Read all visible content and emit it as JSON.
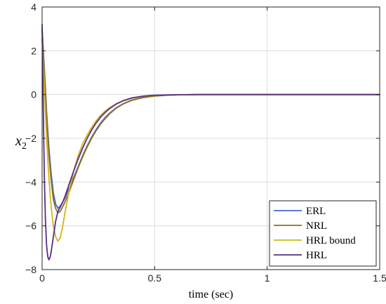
{
  "chart_data": {
    "type": "line",
    "xlabel": "time (sec)",
    "ylabel": "x",
    "ylabel_subscript": "2",
    "xlim": [
      0,
      1.5
    ],
    "ylim": [
      -8,
      4
    ],
    "xticks": [
      0,
      0.5,
      1,
      1.5
    ],
    "xtick_labels": [
      "0",
      "0.5",
      "1",
      "1.5"
    ],
    "yticks": [
      4,
      2,
      0,
      -2,
      -4,
      -6,
      -8
    ],
    "ytick_labels": [
      "4",
      "2",
      "0",
      "−2",
      "−4",
      "−6",
      "−8"
    ],
    "grid": true,
    "legend_position": "bottom-right",
    "series": [
      {
        "name": "ERL",
        "color": "#4169c8",
        "x": [
          0,
          0.01,
          0.02,
          0.03,
          0.04,
          0.05,
          0.06,
          0.07,
          0.08,
          0.09,
          0.1,
          0.12,
          0.14,
          0.16,
          0.18,
          0.2,
          0.22,
          0.24,
          0.26,
          0.28,
          0.3,
          0.33,
          0.36,
          0.4,
          0.45,
          0.5,
          0.55,
          0.6,
          0.7,
          0.8,
          1.0,
          1.2,
          1.5
        ],
        "y": [
          3.0,
          1.2,
          -0.8,
          -2.4,
          -3.6,
          -4.5,
          -5.0,
          -5.2,
          -5.1,
          -4.95,
          -4.75,
          -4.3,
          -3.8,
          -3.3,
          -2.8,
          -2.35,
          -1.95,
          -1.6,
          -1.3,
          -1.05,
          -0.85,
          -0.6,
          -0.42,
          -0.25,
          -0.13,
          -0.06,
          -0.03,
          -0.015,
          0,
          0,
          0,
          0,
          0
        ]
      },
      {
        "name": "NRL",
        "color": "#8b6f22",
        "x": [
          0,
          0.01,
          0.02,
          0.03,
          0.04,
          0.05,
          0.06,
          0.07,
          0.08,
          0.09,
          0.1,
          0.12,
          0.14,
          0.16,
          0.18,
          0.2,
          0.22,
          0.24,
          0.26,
          0.28,
          0.3,
          0.33,
          0.36,
          0.4,
          0.45,
          0.5,
          0.55,
          0.6,
          0.7,
          0.8,
          1.0,
          1.2,
          1.5
        ],
        "y": [
          3.0,
          1.0,
          -1.0,
          -2.7,
          -3.9,
          -4.8,
          -5.2,
          -5.4,
          -5.35,
          -5.15,
          -4.95,
          -4.45,
          -3.9,
          -3.35,
          -2.85,
          -2.4,
          -2.0,
          -1.65,
          -1.35,
          -1.1,
          -0.88,
          -0.62,
          -0.43,
          -0.26,
          -0.14,
          -0.07,
          -0.035,
          -0.015,
          0,
          0,
          0,
          0,
          0
        ]
      },
      {
        "name": "HRL bound",
        "color": "#d4b418",
        "x": [
          0,
          0.01,
          0.02,
          0.03,
          0.04,
          0.05,
          0.06,
          0.07,
          0.08,
          0.09,
          0.1,
          0.12,
          0.14,
          0.16,
          0.18,
          0.2,
          0.22,
          0.24,
          0.26,
          0.28,
          0.3,
          0.33,
          0.36,
          0.4,
          0.45,
          0.5,
          0.55,
          0.6,
          0.7,
          0.8,
          1.0,
          1.2,
          1.5
        ],
        "y": [
          2.6,
          0.2,
          -2.0,
          -3.8,
          -5.1,
          -6.0,
          -6.5,
          -6.7,
          -6.55,
          -6.1,
          -5.5,
          -4.4,
          -3.5,
          -2.8,
          -2.25,
          -1.85,
          -1.5,
          -1.2,
          -0.95,
          -0.75,
          -0.6,
          -0.42,
          -0.29,
          -0.17,
          -0.08,
          -0.04,
          -0.02,
          -0.01,
          0,
          0,
          0,
          0,
          0
        ]
      },
      {
        "name": "HRL",
        "color": "#5a2d86",
        "x": [
          0,
          0.005,
          0.01,
          0.015,
          0.02,
          0.025,
          0.03,
          0.035,
          0.04,
          0.05,
          0.06,
          0.07,
          0.08,
          0.09,
          0.1,
          0.12,
          0.14,
          0.16,
          0.18,
          0.2,
          0.22,
          0.24,
          0.26,
          0.28,
          0.3,
          0.33,
          0.36,
          0.4,
          0.45,
          0.5,
          0.6,
          0.7,
          0.8,
          1.0,
          1.2,
          1.5
        ],
        "y": [
          3.2,
          -0.5,
          -3.8,
          -5.8,
          -6.9,
          -7.4,
          -7.55,
          -7.45,
          -7.2,
          -6.5,
          -5.8,
          -5.35,
          -5.15,
          -4.95,
          -4.7,
          -4.1,
          -3.5,
          -2.95,
          -2.45,
          -2.0,
          -1.62,
          -1.3,
          -1.03,
          -0.82,
          -0.64,
          -0.43,
          -0.28,
          -0.15,
          -0.07,
          -0.03,
          -0.008,
          0,
          0,
          0,
          0,
          0
        ]
      }
    ]
  }
}
